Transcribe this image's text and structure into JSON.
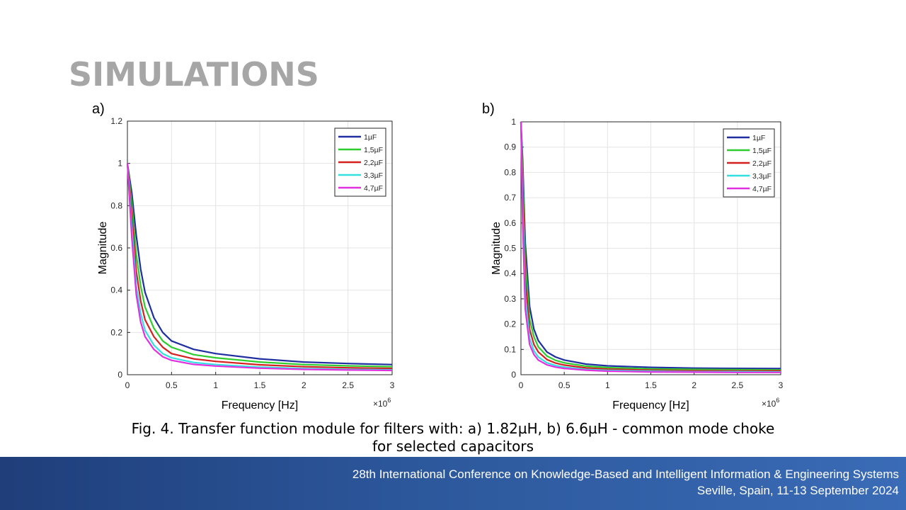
{
  "slide": {
    "title": "SIMULATIONS",
    "panel_a_label": "a)",
    "panel_b_label": "b)",
    "caption_line1": "Fig. 4. Transfer function module for filters with: a) 1.82µH, b) 6.6µH -  common mode choke",
    "caption_line2": "for selected capacitors"
  },
  "footer": {
    "line1": "28th International Conference on Knowledge-Based and Intelligent Information & Engineering Systems",
    "line2": "Seville, Spain, 11-13 September 2024"
  },
  "chart_data": [
    {
      "type": "line",
      "xlabel": "Frequency [Hz]",
      "ylabel": "Magnitude",
      "x_exponent_label": "×10",
      "x_exponent_power": "6",
      "xlim": [
        0,
        3
      ],
      "ylim": [
        0,
        1.2
      ],
      "xticks": [
        0,
        0.5,
        1,
        1.5,
        2,
        2.5,
        3
      ],
      "yticks": [
        0,
        0.2,
        0.4,
        0.6,
        0.8,
        1,
        1.2
      ],
      "grid": true,
      "legend_position": "top-right",
      "x": [
        0,
        0.05,
        0.1,
        0.15,
        0.2,
        0.3,
        0.4,
        0.5,
        0.75,
        1,
        1.5,
        2,
        2.5,
        3
      ],
      "series": [
        {
          "name": "1µF",
          "color": "#1f2fa0",
          "values": [
            1.0,
            0.86,
            0.66,
            0.5,
            0.39,
            0.27,
            0.2,
            0.16,
            0.12,
            0.1,
            0.075,
            0.06,
            0.053,
            0.048
          ]
        },
        {
          "name": "1,5µF",
          "color": "#2ecc2e",
          "values": [
            1.0,
            0.81,
            0.57,
            0.42,
            0.32,
            0.22,
            0.16,
            0.13,
            0.095,
            0.08,
            0.06,
            0.048,
            0.042,
            0.038
          ]
        },
        {
          "name": "2,2µF",
          "color": "#d62020",
          "values": [
            1.0,
            0.76,
            0.49,
            0.35,
            0.26,
            0.18,
            0.13,
            0.1,
            0.075,
            0.063,
            0.047,
            0.038,
            0.033,
            0.03
          ]
        },
        {
          "name": "3,3µF",
          "color": "#33e0e0",
          "values": [
            1.0,
            0.7,
            0.42,
            0.29,
            0.21,
            0.14,
            0.1,
            0.08,
            0.058,
            0.048,
            0.036,
            0.029,
            0.025,
            0.023
          ]
        },
        {
          "name": "4,7µF",
          "color": "#e030e0",
          "values": [
            1.0,
            0.65,
            0.38,
            0.25,
            0.18,
            0.12,
            0.085,
            0.068,
            0.049,
            0.041,
            0.031,
            0.025,
            0.022,
            0.02
          ]
        }
      ]
    },
    {
      "type": "line",
      "xlabel": "Frequency [Hz]",
      "ylabel": "Magnitude",
      "x_exponent_label": "×10",
      "x_exponent_power": "6",
      "xlim": [
        0,
        3
      ],
      "ylim": [
        0,
        1
      ],
      "xticks": [
        0,
        0.5,
        1,
        1.5,
        2,
        2.5,
        3
      ],
      "yticks": [
        0,
        0.1,
        0.2,
        0.3,
        0.4,
        0.5,
        0.6,
        0.7,
        0.8,
        0.9,
        1
      ],
      "grid": true,
      "legend_position": "top-right",
      "x": [
        0,
        0.02,
        0.05,
        0.1,
        0.15,
        0.2,
        0.3,
        0.4,
        0.5,
        0.75,
        1,
        1.5,
        2,
        2.5,
        3
      ],
      "series": [
        {
          "name": "1µF",
          "color": "#1f2fa0",
          "values": [
            1.0,
            0.85,
            0.52,
            0.27,
            0.18,
            0.135,
            0.09,
            0.07,
            0.058,
            0.042,
            0.035,
            0.029,
            0.026,
            0.025,
            0.024
          ]
        },
        {
          "name": "1,5µF",
          "color": "#2ecc2e",
          "values": [
            1.0,
            0.8,
            0.45,
            0.22,
            0.15,
            0.11,
            0.074,
            0.057,
            0.047,
            0.034,
            0.028,
            0.023,
            0.021,
            0.02,
            0.019
          ]
        },
        {
          "name": "2,2µF",
          "color": "#d62020",
          "values": [
            1.0,
            0.74,
            0.38,
            0.18,
            0.12,
            0.09,
            0.06,
            0.046,
            0.038,
            0.027,
            0.022,
            0.018,
            0.016,
            0.015,
            0.015
          ]
        },
        {
          "name": "3,3µF",
          "color": "#33e0e0",
          "values": [
            1.0,
            0.66,
            0.31,
            0.145,
            0.095,
            0.07,
            0.047,
            0.036,
            0.03,
            0.021,
            0.017,
            0.014,
            0.012,
            0.012,
            0.011
          ]
        },
        {
          "name": "4,7µF",
          "color": "#e030e0",
          "values": [
            1.0,
            0.6,
            0.26,
            0.12,
            0.08,
            0.058,
            0.039,
            0.03,
            0.025,
            0.018,
            0.014,
            0.011,
            0.01,
            0.009,
            0.009
          ]
        }
      ]
    }
  ]
}
